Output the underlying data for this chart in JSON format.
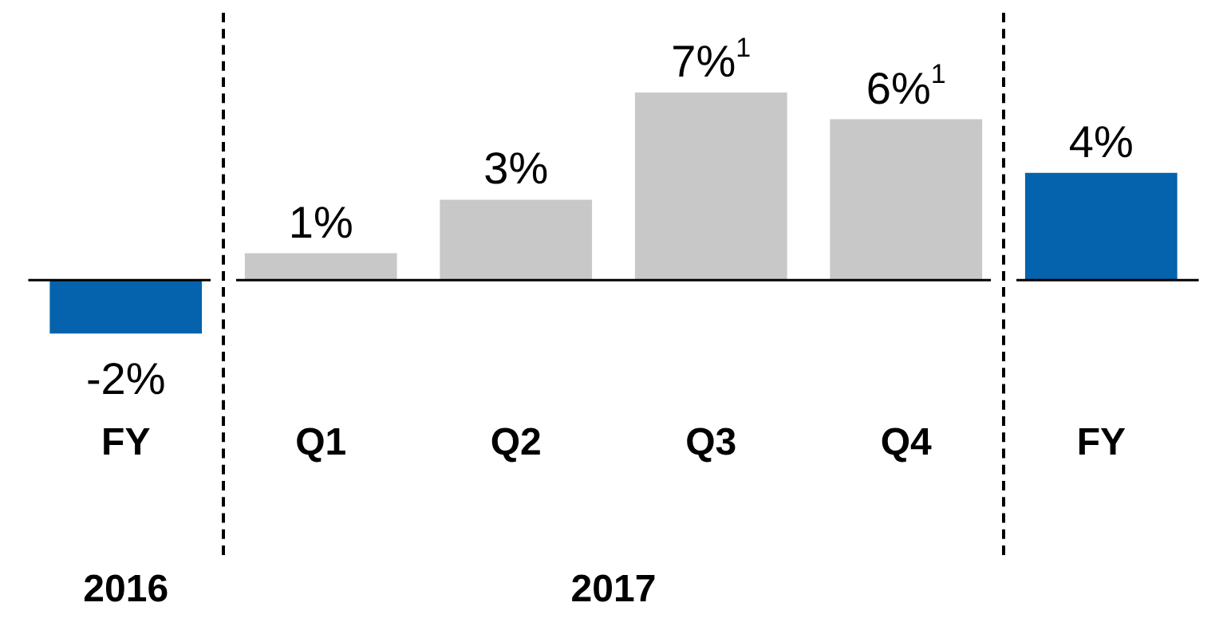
{
  "chart_data": {
    "type": "bar",
    "categories": [
      "FY",
      "Q1",
      "Q2",
      "Q3",
      "Q4",
      "FY"
    ],
    "values": [
      -2,
      1,
      3,
      7,
      6,
      4
    ],
    "colors": [
      "#0563ad",
      "#c8c8c8",
      "#c8c8c8",
      "#c8c8c8",
      "#c8c8c8",
      "#0563ad"
    ],
    "value_labels": [
      "-2%",
      "1%",
      "3%",
      "7%$^{1}$",
      "6%$^{1}$",
      "4%"
    ],
    "annotations": [
      "2016",
      "2017"
    ],
    "ref_lines": [
      {
        "axis": "y",
        "value": 0,
        "color": "#000000"
      }
    ],
    "grid": false,
    "legend": false
  }
}
